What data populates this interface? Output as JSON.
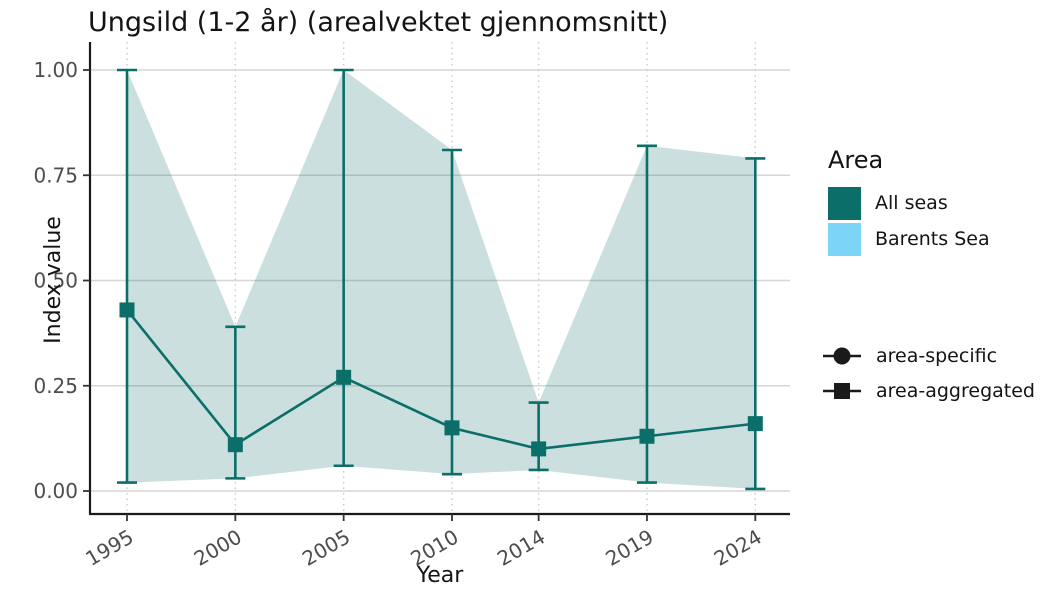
{
  "title": "Ungsild (1-2 år) (arealvektet gjennomsnitt)",
  "colors": {
    "teal": "#0c6e69",
    "ribbon": "rgba(12,110,105,0.22)",
    "light_blue": "#7cd4f7",
    "grid_solid": "#d6d6d6",
    "grid_dotted": "#c9c9c9",
    "axis_line": "#1a1a1a",
    "tick_mark": "#333333",
    "tick_text": "#4d4d4d",
    "black": "#1a1a1a"
  },
  "legend": {
    "area_title": "Area",
    "area_items": [
      {
        "label": "All seas",
        "color": "#0c6e69"
      },
      {
        "label": "Barents Sea",
        "color": "#7cd4f7"
      }
    ],
    "shape_items": [
      {
        "label": "area-specific",
        "shape": "circle"
      },
      {
        "label": "area-aggregated",
        "shape": "square"
      }
    ]
  },
  "chart_data": {
    "type": "line",
    "title": "Ungsild (1-2 år) (arealvektet gjennomsnitt)",
    "xlabel": "Year",
    "ylabel": "Index value",
    "x": [
      1995,
      2000,
      2005,
      2010,
      2014,
      2019,
      2024
    ],
    "xlim": [
      1995,
      2024
    ],
    "ylim": [
      0,
      1
    ],
    "yticks": [
      0,
      0.25,
      0.5,
      0.75,
      1.0
    ],
    "ytick_labels": [
      "0.00",
      "0.25",
      "0.50",
      "0.75",
      "1.00"
    ],
    "grid": "horizontal solid gray, vertical dotted gray at year ticks",
    "legend_position": "right",
    "series": [
      {
        "name": "All seas",
        "shape_type": "area-aggregated",
        "marker": "square",
        "values": [
          0.43,
          0.11,
          0.27,
          0.15,
          0.1,
          0.13,
          0.16
        ],
        "lower": [
          0.02,
          0.03,
          0.06,
          0.04,
          0.05,
          0.02,
          0.005
        ],
        "upper": [
          1.0,
          0.39,
          1.0,
          0.81,
          0.21,
          0.82,
          0.79
        ],
        "ribbon": "confidence band between lower and upper"
      }
    ]
  }
}
